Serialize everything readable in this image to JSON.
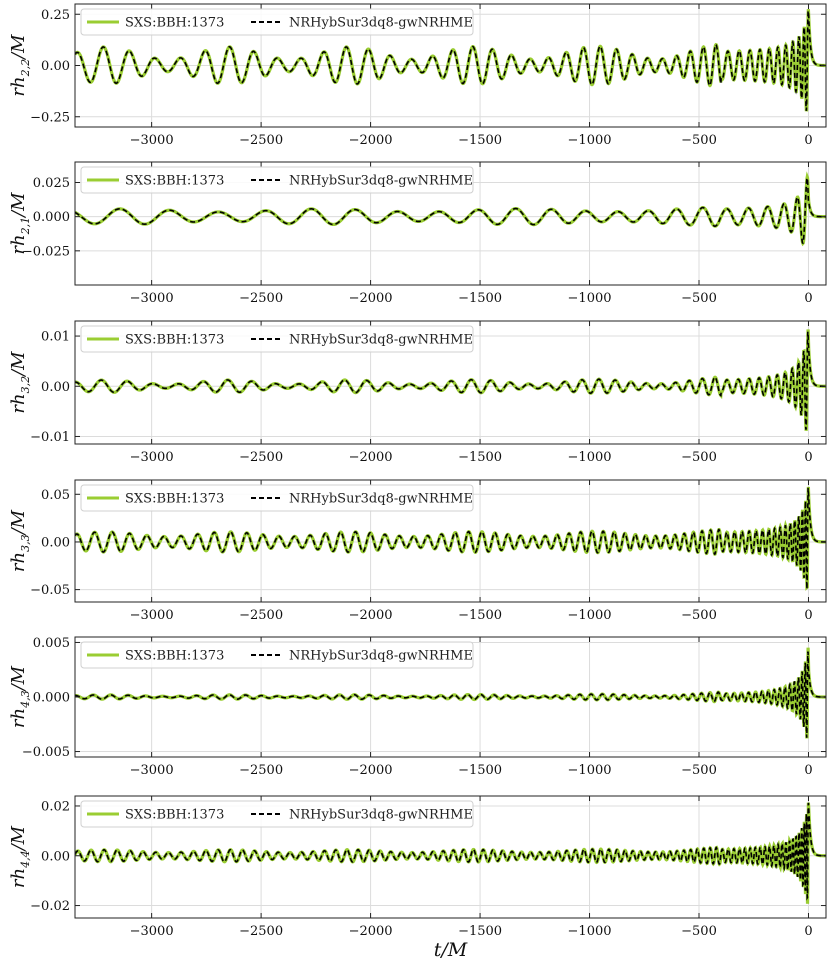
{
  "chart_data": [
    {
      "type": "line",
      "ylabel": {
        "main": "rh",
        "sub": "2,2",
        "tail": "/M"
      },
      "xlim": [
        -3350,
        80
      ],
      "ylim": [
        -0.3,
        0.3
      ],
      "yticks": [
        -0.25,
        0.0,
        0.25
      ],
      "ytick_labels": [
        "−0.25",
        "0.00",
        "0.25"
      ],
      "xticks": [
        -3000,
        -2500,
        -2000,
        -1500,
        -1000,
        -500,
        0
      ],
      "xtick_labels": [
        "−3000",
        "−2500",
        "−2000",
        "−1500",
        "−1000",
        "−500",
        "0"
      ],
      "grid": true,
      "legend_position": "top-left",
      "series": [
        {
          "name": "SXS:BBH:1373",
          "style": "solid",
          "color": "#9acd32"
        },
        {
          "name": "NRHybSur3dq8-gwNRHME",
          "style": "dashed",
          "color": "#000000"
        }
      ],
      "waveform": {
        "peak_amplitude": 0.28,
        "early_amplitude": 0.06,
        "mod_depth": 0.5,
        "mod_period": 560,
        "cycles": 43,
        "phase": 0.3
      }
    },
    {
      "type": "line",
      "ylabel": {
        "main": "rh",
        "sub": "2,1",
        "tail": "/M"
      },
      "xlim": [
        -3350,
        80
      ],
      "ylim": [
        -0.05,
        0.04
      ],
      "yticks": [
        -0.025,
        0.0,
        0.025
      ],
      "ytick_labels": [
        "−0.025",
        "0.000",
        "0.025"
      ],
      "xticks": [
        -3000,
        -2500,
        -2000,
        -1500,
        -1000,
        -500,
        0
      ],
      "xtick_labels": [
        "−3000",
        "−2500",
        "−2000",
        "−1500",
        "−1000",
        "−500",
        "0"
      ],
      "grid": true,
      "legend_position": "top-left",
      "series": [
        {
          "name": "SXS:BBH:1373",
          "style": "solid",
          "color": "#9acd32"
        },
        {
          "name": "NRHybSur3dq8-gwNRHME",
          "style": "dashed",
          "color": "#000000"
        }
      ],
      "waveform": {
        "peak_amplitude": 0.034,
        "early_amplitude": 0.0045,
        "mod_depth": 0.25,
        "mod_period": 900,
        "cycles": 22,
        "phase": 1.2
      }
    },
    {
      "type": "line",
      "ylabel": {
        "main": "rh",
        "sub": "3,2",
        "tail": "/M"
      },
      "xlim": [
        -3350,
        80
      ],
      "ylim": [
        -0.0115,
        0.013
      ],
      "yticks": [
        -0.01,
        0.0,
        0.01
      ],
      "ytick_labels": [
        "−0.01",
        "0.00",
        "0.01"
      ],
      "xticks": [
        -3000,
        -2500,
        -2000,
        -1500,
        -1000,
        -500,
        0
      ],
      "xtick_labels": [
        "−3000",
        "−2500",
        "−2000",
        "−1500",
        "−1000",
        "−500",
        "0"
      ],
      "grid": true,
      "legend_position": "top-left",
      "series": [
        {
          "name": "SXS:BBH:1373",
          "style": "solid",
          "color": "#9acd32"
        },
        {
          "name": "NRHybSur3dq8-gwNRHME",
          "style": "dashed",
          "color": "#000000"
        }
      ],
      "waveform": {
        "peak_amplitude": 0.012,
        "early_amplitude": 0.0008,
        "mod_depth": 0.5,
        "mod_period": 560,
        "cycles": 43,
        "phase": 0.8
      }
    },
    {
      "type": "line",
      "ylabel": {
        "main": "rh",
        "sub": "3,3",
        "tail": "/M"
      },
      "xlim": [
        -3350,
        80
      ],
      "ylim": [
        -0.063,
        0.065
      ],
      "yticks": [
        -0.05,
        0.0,
        0.05
      ],
      "ytick_labels": [
        "−0.05",
        "0.00",
        "0.05"
      ],
      "xticks": [
        -3000,
        -2500,
        -2000,
        -1500,
        -1000,
        -500,
        0
      ],
      "xtick_labels": [
        "−3000",
        "−2500",
        "−2000",
        "−1500",
        "−1000",
        "−500",
        "0"
      ],
      "grid": true,
      "legend_position": "top-left",
      "series": [
        {
          "name": "SXS:BBH:1373",
          "style": "solid",
          "color": "#9acd32"
        },
        {
          "name": "NRHybSur3dq8-gwNRHME",
          "style": "dashed",
          "color": "#000000"
        }
      ],
      "waveform": {
        "peak_amplitude": 0.06,
        "early_amplitude": 0.008,
        "mod_depth": 0.3,
        "mod_period": 560,
        "cycles": 64,
        "phase": 0.5
      }
    },
    {
      "type": "line",
      "ylabel": {
        "main": "rh",
        "sub": "4,3",
        "tail": "/M"
      },
      "xlim": [
        -3350,
        80
      ],
      "ylim": [
        -0.0055,
        0.0055
      ],
      "yticks": [
        -0.005,
        0.0,
        0.005
      ],
      "ytick_labels": [
        "−0.005",
        "0.000",
        "0.005"
      ],
      "xticks": [
        -3000,
        -2500,
        -2000,
        -1500,
        -1000,
        -500,
        0
      ],
      "xtick_labels": [
        "−3000",
        "−2500",
        "−2000",
        "−1500",
        "−1000",
        "−500",
        "0"
      ],
      "grid": true,
      "legend_position": "top-left",
      "series": [
        {
          "name": "SXS:BBH:1373",
          "style": "solid",
          "color": "#9acd32"
        },
        {
          "name": "NRHybSur3dq8-gwNRHME",
          "style": "dashed",
          "color": "#000000"
        }
      ],
      "waveform": {
        "peak_amplitude": 0.0048,
        "early_amplitude": 0.00012,
        "mod_depth": 0.5,
        "mod_period": 560,
        "cycles": 64,
        "phase": 1.0
      }
    },
    {
      "type": "line",
      "ylabel": {
        "main": "rh",
        "sub": "4,4",
        "tail": "/M"
      },
      "xlim": [
        -3350,
        80
      ],
      "ylim": [
        -0.025,
        0.024
      ],
      "yticks": [
        -0.02,
        0.0,
        0.02
      ],
      "ytick_labels": [
        "−0.02",
        "0.00",
        "0.02"
      ],
      "xticks": [
        -3000,
        -2500,
        -2000,
        -1500,
        -1000,
        -500,
        0
      ],
      "xtick_labels": [
        "−3000",
        "−2500",
        "−2000",
        "−1500",
        "−1000",
        "−500",
        "0"
      ],
      "xlabel": "t/M",
      "grid": true,
      "legend_position": "top-left",
      "series": [
        {
          "name": "SXS:BBH:1373",
          "style": "solid",
          "color": "#9acd32"
        },
        {
          "name": "NRHybSur3dq8-gwNRHME",
          "style": "dashed",
          "color": "#000000"
        }
      ],
      "waveform": {
        "peak_amplitude": 0.022,
        "early_amplitude": 0.0018,
        "mod_depth": 0.3,
        "mod_period": 560,
        "cycles": 86,
        "phase": 0.2
      }
    }
  ]
}
